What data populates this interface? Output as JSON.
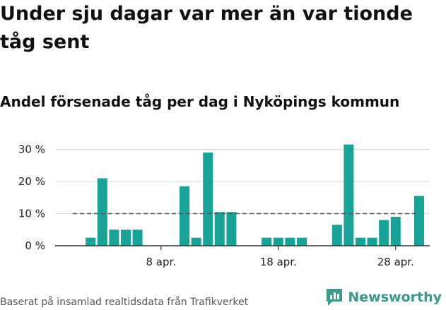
{
  "title": "Under sju dagar var mer än var tionde tåg sent",
  "subtitle": "Andel försenade tåg per dag i Nyköpings kommun",
  "source": "Baserat på insamlad realtidsdata från Trafikverket",
  "brand": {
    "name": "Newsworthy",
    "icon": "newsworthy-logo-icon",
    "color": "#3a9a8c"
  },
  "bar_color": "#17a398",
  "chart_data": {
    "type": "bar",
    "title": "Andel försenade tåg per dag i Nyköpings kommun",
    "x_unit": "april, day of month",
    "x": [
      1,
      2,
      3,
      4,
      5,
      6,
      7,
      8,
      9,
      10,
      11,
      12,
      13,
      14,
      15,
      16,
      17,
      18,
      19,
      20,
      21,
      22,
      23,
      24,
      25,
      26,
      27,
      28,
      29,
      30
    ],
    "values": [
      null,
      2.5,
      21,
      5,
      5,
      5,
      null,
      null,
      null,
      18.5,
      2.5,
      29,
      10.5,
      10.5,
      null,
      null,
      2.5,
      2.5,
      2.5,
      2.5,
      null,
      null,
      6.5,
      31.5,
      2.5,
      2.5,
      8,
      9,
      null,
      15.5
    ],
    "ylim": [
      0,
      33
    ],
    "yticks": [
      0,
      10,
      20,
      30
    ],
    "ytick_labels": [
      "0 %",
      "10 %",
      "20 %",
      "30 %"
    ],
    "xticks": [
      8,
      18,
      28
    ],
    "xtick_labels": [
      "8 apr.",
      "18 apr.",
      "28 apr."
    ],
    "reference_line": {
      "value": 10,
      "style": "dashed"
    },
    "grid": "horizontal",
    "legend": "none"
  }
}
